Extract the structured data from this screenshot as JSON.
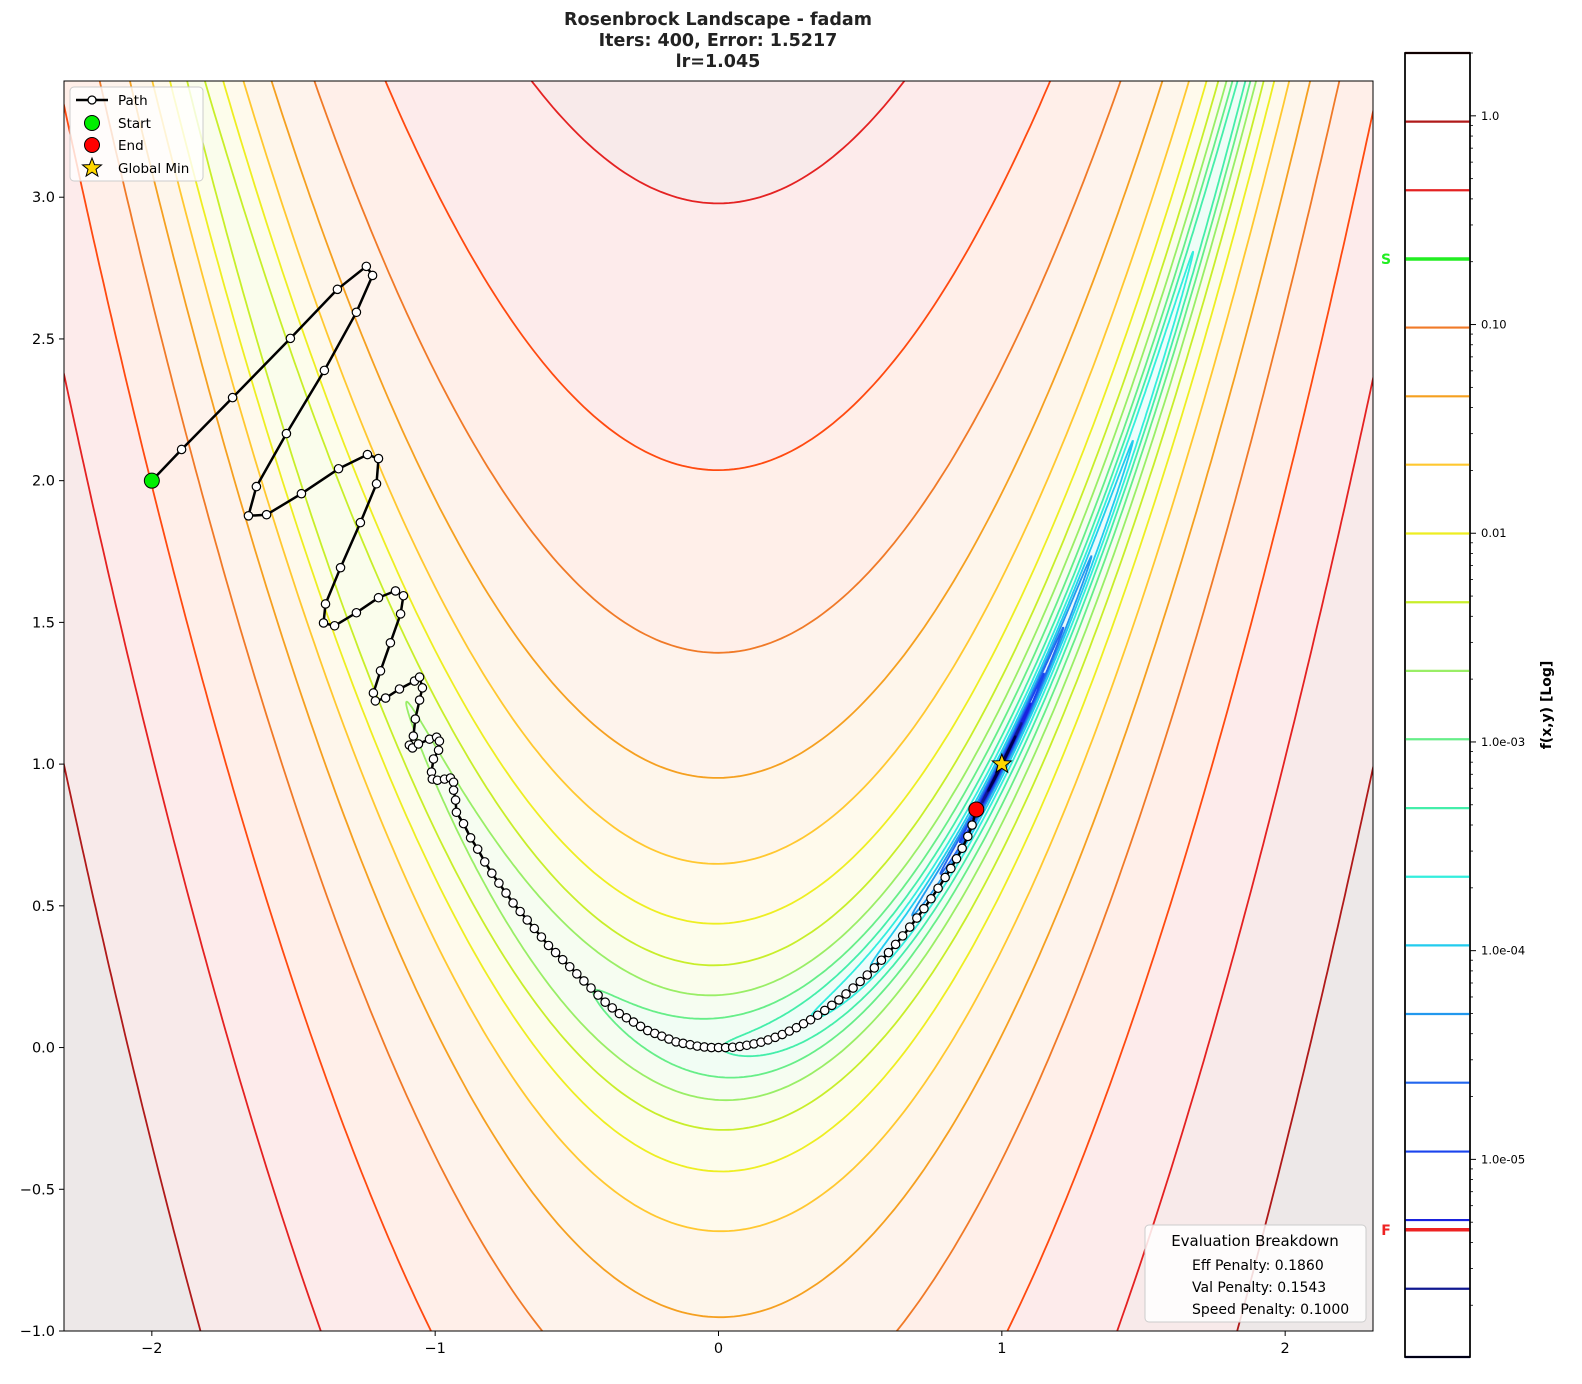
{
  "chart_data": {
    "type": "contour",
    "title_lines": [
      "Rosenbrock Landscape - fadam",
      "Iters: 400, Error: 1.5217",
      "lr=1.045"
    ],
    "xlim": [
      -2.31,
      2.31
    ],
    "ylim": [
      -1.0,
      3.41
    ],
    "xticks": [
      -2,
      -1,
      0,
      1,
      2
    ],
    "xtick_labels": [
      "−2",
      "−1",
      "0",
      "1",
      "2"
    ],
    "yticks": [
      -1.0,
      -0.5,
      0.0,
      0.5,
      1.0,
      1.5,
      2.0,
      2.5,
      3.0
    ],
    "ytick_labels": [
      "−1.0",
      "−0.5",
      "0.0",
      "0.5",
      "1.0",
      "1.5",
      "2.0",
      "2.5",
      "3.0"
    ],
    "grid": false,
    "contour_levels": [
      4038,
      1894,
      888,
      416,
      195,
      91.5,
      43.0,
      20.1,
      9.43,
      4.42,
      2.08,
      0.973,
      0.456,
      0.214,
      0.1,
      0.047,
      0.022,
      0.0103,
      0.00485,
      0.00228
    ],
    "contour_colors": [
      "#3a0000",
      "#b01a1a",
      "#e42222",
      "#ff4a10",
      "#f07a28",
      "#f5a020",
      "#ffc830",
      "#eeee22",
      "#c8ee2a",
      "#99ee66",
      "#66ee88",
      "#44eeaa",
      "#33eedd",
      "#22ccee",
      "#2299ee",
      "#2266ee",
      "#1a44ee",
      "#1a22dd",
      "#101890",
      "#000050"
    ],
    "path": [
      [
        -2.0,
        2.0
      ],
      [
        -1.895,
        2.11
      ],
      [
        -1.715,
        2.293
      ],
      [
        -1.511,
        2.502
      ],
      [
        -1.345,
        2.675
      ],
      [
        -1.243,
        2.756
      ],
      [
        -1.221,
        2.724
      ],
      [
        -1.278,
        2.594
      ],
      [
        -1.391,
        2.389
      ],
      [
        -1.525,
        2.166
      ],
      [
        -1.631,
        1.979
      ],
      [
        -1.659,
        1.876
      ],
      [
        -1.595,
        1.88
      ],
      [
        -1.472,
        1.954
      ],
      [
        -1.341,
        2.042
      ],
      [
        -1.239,
        2.092
      ],
      [
        -1.2,
        2.078
      ],
      [
        -1.207,
        1.989
      ],
      [
        -1.264,
        1.852
      ],
      [
        -1.334,
        1.693
      ],
      [
        -1.387,
        1.565
      ],
      [
        -1.394,
        1.498
      ],
      [
        -1.355,
        1.488
      ],
      [
        -1.278,
        1.534
      ],
      [
        -1.2,
        1.587
      ],
      [
        -1.14,
        1.611
      ],
      [
        -1.112,
        1.594
      ],
      [
        -1.122,
        1.53
      ],
      [
        -1.158,
        1.428
      ],
      [
        -1.193,
        1.329
      ],
      [
        -1.218,
        1.251
      ],
      [
        -1.211,
        1.223
      ],
      [
        -1.175,
        1.233
      ],
      [
        -1.126,
        1.265
      ],
      [
        -1.073,
        1.293
      ],
      [
        -1.055,
        1.307
      ],
      [
        -1.045,
        1.269
      ],
      [
        -1.055,
        1.226
      ],
      [
        -1.07,
        1.159
      ],
      [
        -1.077,
        1.099
      ],
      [
        -1.091,
        1.067
      ],
      [
        -1.08,
        1.057
      ],
      [
        -1.059,
        1.071
      ],
      [
        -1.02,
        1.088
      ],
      [
        -0.995,
        1.095
      ],
      [
        -0.985,
        1.081
      ],
      [
        -0.988,
        1.049
      ],
      [
        -1.006,
        1.018
      ],
      [
        -1.013,
        0.972
      ],
      [
        -1.01,
        0.947
      ],
      [
        -0.992,
        0.943
      ],
      [
        -0.967,
        0.947
      ],
      [
        -0.946,
        0.951
      ],
      [
        -0.935,
        0.936
      ],
      [
        -0.935,
        0.908
      ],
      [
        -0.928,
        0.873
      ],
      [
        -0.925,
        0.83
      ],
      [
        -0.9,
        0.79
      ],
      [
        -0.875,
        0.74
      ],
      [
        -0.85,
        0.7
      ],
      [
        -0.825,
        0.655
      ],
      [
        -0.8,
        0.615
      ],
      [
        -0.775,
        0.58
      ],
      [
        -0.75,
        0.545
      ],
      [
        -0.725,
        0.51
      ],
      [
        -0.7,
        0.48
      ],
      [
        -0.675,
        0.45
      ],
      [
        -0.65,
        0.42
      ],
      [
        -0.625,
        0.39
      ],
      [
        -0.6,
        0.36
      ],
      [
        -0.575,
        0.335
      ],
      [
        -0.55,
        0.31
      ],
      [
        -0.525,
        0.285
      ],
      [
        -0.5,
        0.26
      ],
      [
        -0.475,
        0.235
      ],
      [
        -0.45,
        0.21
      ],
      [
        -0.425,
        0.185
      ],
      [
        -0.4,
        0.16
      ],
      [
        -0.375,
        0.14
      ],
      [
        -0.35,
        0.12
      ],
      [
        -0.325,
        0.105
      ],
      [
        -0.3,
        0.09
      ],
      [
        -0.275,
        0.075
      ],
      [
        -0.25,
        0.06
      ],
      [
        -0.225,
        0.05
      ],
      [
        -0.2,
        0.04
      ],
      [
        -0.175,
        0.03
      ],
      [
        -0.15,
        0.02
      ],
      [
        -0.125,
        0.015
      ],
      [
        -0.1,
        0.01
      ],
      [
        -0.075,
        0.005
      ],
      [
        -0.05,
        0.002
      ],
      [
        -0.025,
        0.0
      ],
      [
        0.0,
        0.0
      ],
      [
        0.025,
        0.0
      ],
      [
        0.05,
        0.001
      ],
      [
        0.075,
        0.004
      ],
      [
        0.1,
        0.008
      ],
      [
        0.125,
        0.013
      ],
      [
        0.15,
        0.019
      ],
      [
        0.175,
        0.027
      ],
      [
        0.2,
        0.036
      ],
      [
        0.225,
        0.046
      ],
      [
        0.25,
        0.058
      ],
      [
        0.275,
        0.07
      ],
      [
        0.3,
        0.084
      ],
      [
        0.325,
        0.098
      ],
      [
        0.35,
        0.114
      ],
      [
        0.375,
        0.131
      ],
      [
        0.4,
        0.149
      ],
      [
        0.425,
        0.168
      ],
      [
        0.45,
        0.189
      ],
      [
        0.475,
        0.21
      ],
      [
        0.5,
        0.233
      ],
      [
        0.525,
        0.256
      ],
      [
        0.55,
        0.281
      ],
      [
        0.575,
        0.308
      ],
      [
        0.6,
        0.335
      ],
      [
        0.625,
        0.364
      ],
      [
        0.65,
        0.394
      ],
      [
        0.675,
        0.425
      ],
      [
        0.7,
        0.457
      ],
      [
        0.725,
        0.49
      ],
      [
        0.75,
        0.525
      ],
      [
        0.775,
        0.562
      ],
      [
        0.8,
        0.6
      ],
      [
        0.82,
        0.632
      ],
      [
        0.84,
        0.666
      ],
      [
        0.86,
        0.703
      ],
      [
        0.88,
        0.745
      ],
      [
        0.895,
        0.785
      ],
      [
        0.91,
        0.84
      ]
    ],
    "start": [
      -2.0,
      2.0
    ],
    "end": [
      0.91,
      0.84
    ],
    "global_min": [
      1.0,
      1.0
    ],
    "marker_colors": {
      "start": "#00ee00",
      "end": "#ff0000",
      "global_min": "#ffd700"
    },
    "legend": {
      "placement": "upper-left",
      "items": [
        {
          "label": "Path",
          "marker": "line-circle"
        },
        {
          "label": "Start",
          "marker": "green-circle"
        },
        {
          "label": "End",
          "marker": "red-circle"
        },
        {
          "label": "Global Min",
          "marker": "gold-star"
        }
      ]
    },
    "colorbar": {
      "label": "f(x,y) [Log]",
      "scale": "log",
      "range": [
        1.13e-06,
        2.0
      ],
      "ticks": [
        1.0,
        0.1,
        0.01,
        0.001,
        0.0001,
        1e-05
      ],
      "tick_labels": [
        "1.0",
        "0.10",
        "0.01",
        "1.0e-03",
        "1.0e-04",
        "1.0e-05"
      ],
      "levels": [
        2.0,
        0.938,
        0.44,
        0.206,
        0.0967,
        0.0453,
        0.0213,
        0.00997,
        0.00467,
        0.00219,
        0.00103,
        0.000482,
        0.000226,
        0.000106,
        4.97e-05,
        2.33e-05,
        1.09e-05,
        5.12e-06,
        2.4e-06,
        1.13e-06
      ],
      "markers": [
        {
          "label": "S",
          "value": 0.206,
          "color": "#22ee22"
        },
        {
          "label": "F",
          "value": 4.6e-06,
          "color": "#ee2222"
        }
      ]
    },
    "annotation": {
      "title": "Evaluation Breakdown",
      "lines": [
        "Eff Penalty: 0.1860",
        "Val Penalty: 0.1543",
        "Speed Penalty: 0.1000"
      ],
      "placement": "lower-right"
    }
  }
}
